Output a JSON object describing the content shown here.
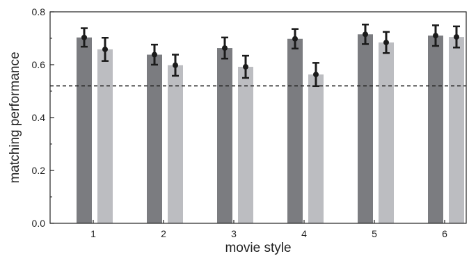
{
  "chart_data": {
    "type": "bar",
    "title": "",
    "xlabel": "movie style",
    "ylabel": "matching performance",
    "categories": [
      "1",
      "2",
      "3",
      "4",
      "5",
      "6"
    ],
    "ylim": [
      0,
      0.8
    ],
    "yticks": [
      "0.0",
      "0.2",
      "0.4",
      "0.6",
      "0.8"
    ],
    "reference_line": 0.52,
    "grid": false,
    "legend": "none",
    "series": [
      {
        "color": "#7b7c80",
        "values": [
          0.703,
          0.638,
          0.663,
          0.698,
          0.715,
          0.71
        ],
        "error": [
          0.035,
          0.038,
          0.04,
          0.037,
          0.037,
          0.039
        ]
      },
      {
        "color": "#bcbdc1",
        "values": [
          0.658,
          0.598,
          0.592,
          0.563,
          0.684,
          0.705
        ],
        "error": [
          0.044,
          0.04,
          0.042,
          0.044,
          0.04,
          0.04
        ]
      }
    ]
  }
}
